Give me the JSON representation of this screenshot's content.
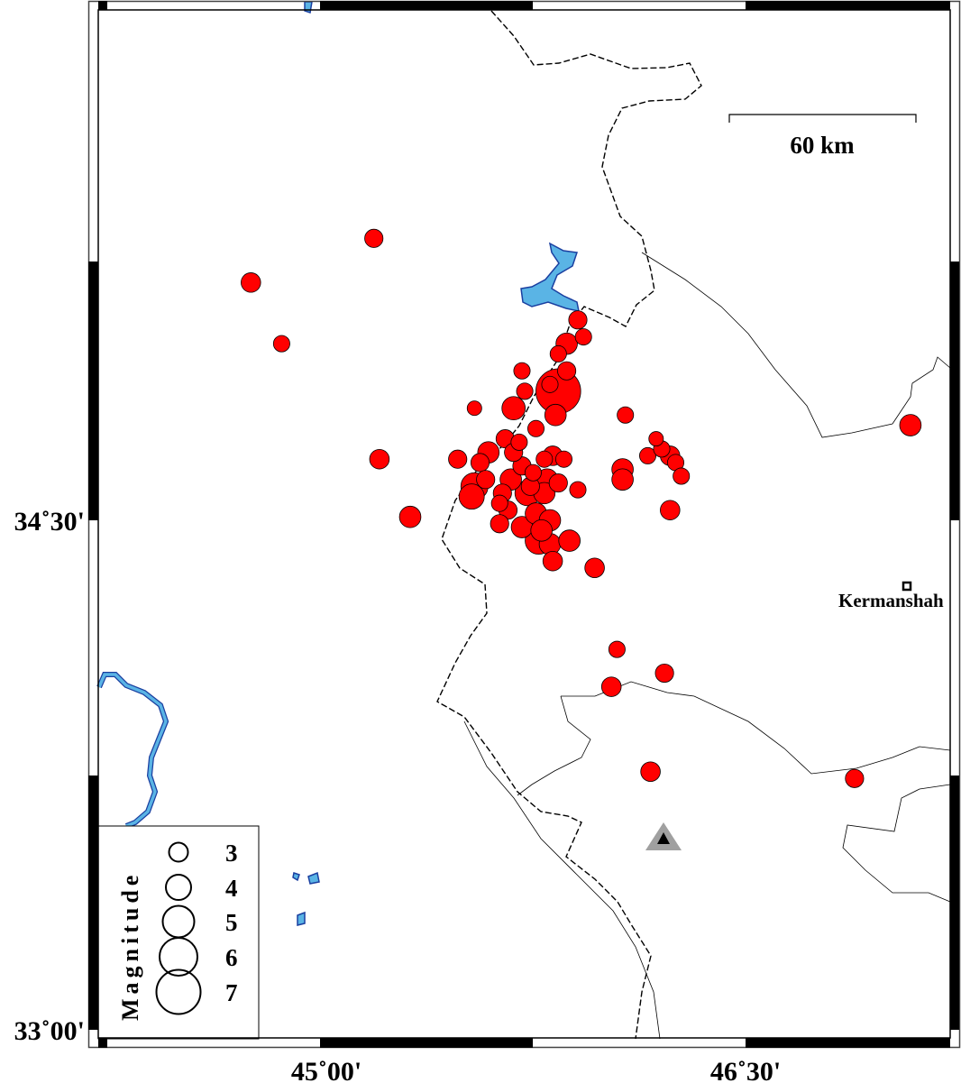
{
  "map": {
    "projection_extent": {
      "lon": [
        44.47,
        47.23
      ],
      "lat": [
        32.98,
        36.04
      ]
    },
    "axis": {
      "x_ticks": [
        {
          "lon": 45.0,
          "label": "45˚00'"
        },
        {
          "lon": 46.5,
          "label": "46˚30'"
        }
      ],
      "y_ticks": [
        {
          "lat": 34.5,
          "label": "34˚30'"
        },
        {
          "lat": 33.0,
          "label": "33˚00'"
        }
      ]
    },
    "scale_bar": {
      "label": "60 km"
    },
    "colors": {
      "event_fill": "#ff0000",
      "water": "#5ab4e5",
      "river_outline": "#1a3fa0",
      "station": "#a0a0a0"
    },
    "city": {
      "name": "Kermanshah",
      "lon": 47.08,
      "lat": 34.31,
      "icon": "square-marker-icon"
    },
    "station": {
      "lon": 46.21,
      "lat": 33.56,
      "icon": "triangle-station-icon"
    },
    "events": [
      [
        45.17,
        35.33,
        2.9
      ],
      [
        44.73,
        35.2,
        3.1
      ],
      [
        44.84,
        35.02,
        2.6
      ],
      [
        45.19,
        34.68,
        3.1
      ],
      [
        45.3,
        34.51,
        3.4
      ],
      [
        45.53,
        34.83,
        2.3
      ],
      [
        45.7,
        34.94,
        2.6
      ],
      [
        45.9,
        35.09,
        2.9
      ],
      [
        45.86,
        35.02,
        3.4
      ],
      [
        45.92,
        35.04,
        2.6
      ],
      [
        45.83,
        34.99,
        2.6
      ],
      [
        45.86,
        34.94,
        2.9
      ],
      [
        45.83,
        34.88,
        7.1
      ],
      [
        45.8,
        34.9,
        2.6
      ],
      [
        45.67,
        34.83,
        3.7
      ],
      [
        45.71,
        34.88,
        2.6
      ],
      [
        45.82,
        34.81,
        3.4
      ],
      [
        45.75,
        34.77,
        2.6
      ],
      [
        46.07,
        34.81,
        2.6
      ],
      [
        46.18,
        34.74,
        2.3
      ],
      [
        46.15,
        34.69,
        2.6
      ],
      [
        46.2,
        34.71,
        2.6
      ],
      [
        46.23,
        34.69,
        3.1
      ],
      [
        46.25,
        34.67,
        2.6
      ],
      [
        46.27,
        34.63,
        2.6
      ],
      [
        46.06,
        34.65,
        3.4
      ],
      [
        46.06,
        34.62,
        3.4
      ],
      [
        46.23,
        34.53,
        3.1
      ],
      [
        45.96,
        34.36,
        3.1
      ],
      [
        46.04,
        34.12,
        2.6
      ],
      [
        46.21,
        34.05,
        2.9
      ],
      [
        46.02,
        34.01,
        3.1
      ],
      [
        46.16,
        33.76,
        3.1
      ],
      [
        46.89,
        33.74,
        2.9
      ],
      [
        47.09,
        34.78,
        3.4
      ],
      [
        45.47,
        34.68,
        2.9
      ],
      [
        45.58,
        34.7,
        3.4
      ],
      [
        45.55,
        34.67,
        2.9
      ],
      [
        45.64,
        34.74,
        2.9
      ],
      [
        45.69,
        34.73,
        2.6
      ],
      [
        45.7,
        34.66,
        2.9
      ],
      [
        45.66,
        34.62,
        3.4
      ],
      [
        45.63,
        34.58,
        2.9
      ],
      [
        45.53,
        34.6,
        4.3
      ],
      [
        45.52,
        34.57,
        4.0
      ],
      [
        45.57,
        34.62,
        2.9
      ],
      [
        45.74,
        34.64,
        2.6
      ],
      [
        45.78,
        34.68,
        2.6
      ],
      [
        45.81,
        34.69,
        3.1
      ],
      [
        45.85,
        34.68,
        2.6
      ],
      [
        45.79,
        34.62,
        3.4
      ],
      [
        45.78,
        34.58,
        3.4
      ],
      [
        45.83,
        34.61,
        2.9
      ],
      [
        45.9,
        34.59,
        2.6
      ],
      [
        45.72,
        34.58,
        4.0
      ],
      [
        45.65,
        34.53,
        2.9
      ],
      [
        45.62,
        34.49,
        2.9
      ],
      [
        45.7,
        34.48,
        3.4
      ],
      [
        45.75,
        34.52,
        3.4
      ],
      [
        45.8,
        34.5,
        3.4
      ],
      [
        45.76,
        34.44,
        4.3
      ],
      [
        45.8,
        34.43,
        3.4
      ],
      [
        45.87,
        34.44,
        3.4
      ],
      [
        45.81,
        34.38,
        3.1
      ],
      [
        45.77,
        34.47,
        3.4
      ],
      [
        45.67,
        34.7,
        2.9
      ],
      [
        45.62,
        34.55,
        2.6
      ],
      [
        45.73,
        34.6,
        2.9
      ]
    ]
  },
  "legend": {
    "title": "Magnitude",
    "items": [
      {
        "mag": 3,
        "label": "3"
      },
      {
        "mag": 4,
        "label": "4"
      },
      {
        "mag": 5,
        "label": "5"
      },
      {
        "mag": 6,
        "label": "6"
      },
      {
        "mag": 7,
        "label": "7"
      }
    ]
  }
}
